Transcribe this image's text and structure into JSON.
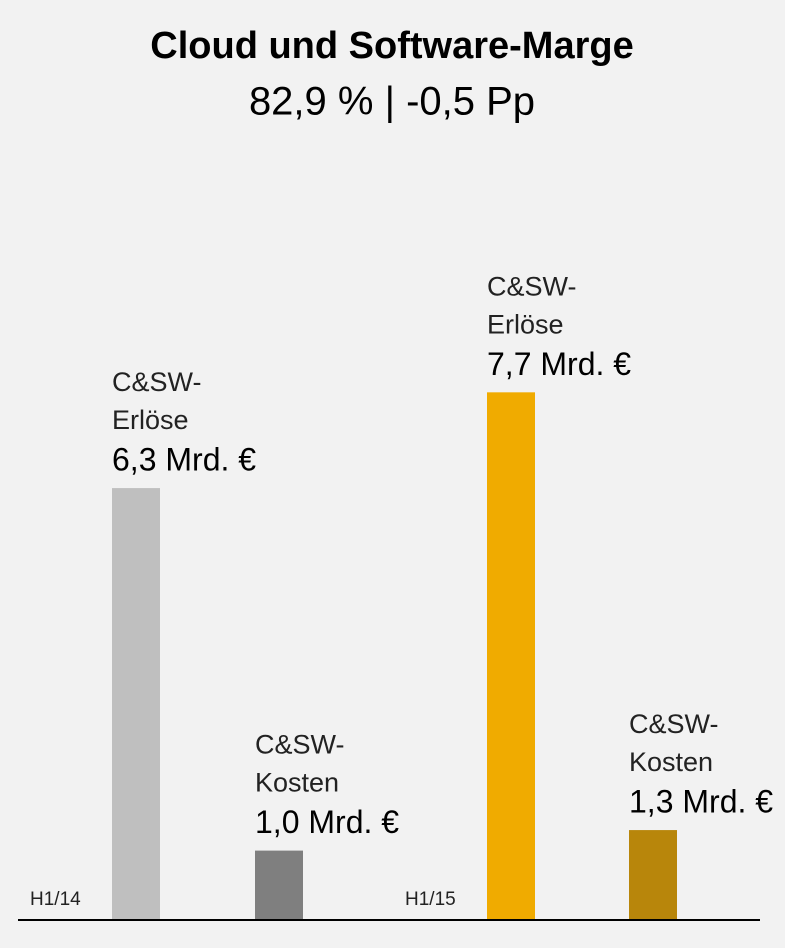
{
  "chart_data": {
    "type": "bar",
    "title": "Cloud und Software-Marge",
    "subtitle": "82,9 % | -0,5 Pp",
    "groups": [
      {
        "name": "H1/14",
        "categories": [
          [
            "C&SW-",
            "Erlöse"
          ],
          [
            "C&SW-",
            "Kosten"
          ]
        ],
        "values": [
          6.3,
          1.0
        ],
        "value_labels": [
          "6,3 Mrd. €",
          "1,0 Mrd. €"
        ],
        "colors": [
          "#bfbfbf",
          "#7f7f7f"
        ]
      },
      {
        "name": "H1/15",
        "categories": [
          [
            "C&SW-",
            "Erlöse"
          ],
          [
            "C&SW-",
            "Kosten"
          ]
        ],
        "values": [
          7.7,
          1.3
        ],
        "value_labels": [
          "7,7 Mrd. €",
          "1,3 Mrd. €"
        ],
        "colors": [
          "#f0ab00",
          "#b8860b"
        ]
      }
    ]
  }
}
